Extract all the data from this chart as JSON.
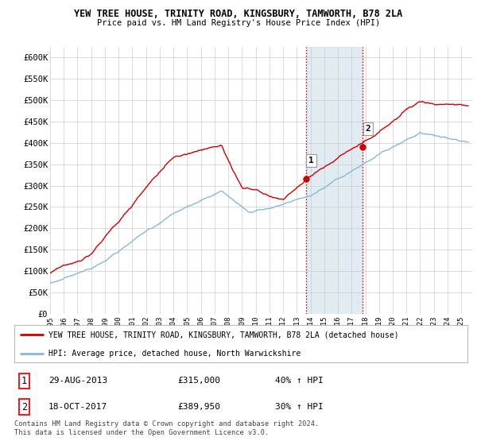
{
  "title1": "YEW TREE HOUSE, TRINITY ROAD, KINGSBURY, TAMWORTH, B78 2LA",
  "title2": "Price paid vs. HM Land Registry's House Price Index (HPI)",
  "ylabel_ticks": [
    "£0",
    "£50K",
    "£100K",
    "£150K",
    "£200K",
    "£250K",
    "£300K",
    "£350K",
    "£400K",
    "£450K",
    "£500K",
    "£550K",
    "£600K"
  ],
  "ytick_vals": [
    0,
    50000,
    100000,
    150000,
    200000,
    250000,
    300000,
    350000,
    400000,
    450000,
    500000,
    550000,
    600000
  ],
  "ylim": [
    0,
    625000
  ],
  "xlim_start": 1995.0,
  "xlim_end": 2025.8,
  "background_color": "#ffffff",
  "plot_bg_color": "#ffffff",
  "grid_color": "#cccccc",
  "red_line_color": "#cc0000",
  "blue_line_color": "#85b8d8",
  "sale1_x": 2013.66,
  "sale1_y": 315000,
  "sale2_x": 2017.8,
  "sale2_y": 389950,
  "vline_color": "#cc0000",
  "shade_color": "#c8dce8",
  "legend_red_label": "YEW TREE HOUSE, TRINITY ROAD, KINGSBURY, TAMWORTH, B78 2LA (detached house)",
  "legend_blue_label": "HPI: Average price, detached house, North Warwickshire",
  "ann1_date": "29-AUG-2013",
  "ann1_price": "£315,000",
  "ann1_hpi": "40% ↑ HPI",
  "ann2_date": "18-OCT-2017",
  "ann2_price": "£389,950",
  "ann2_hpi": "30% ↑ HPI",
  "footer": "Contains HM Land Registry data © Crown copyright and database right 2024.\nThis data is licensed under the Open Government Licence v3.0.",
  "xtick_years": [
    1995,
    1996,
    1997,
    1998,
    1999,
    2000,
    2001,
    2002,
    2003,
    2004,
    2005,
    2006,
    2007,
    2008,
    2009,
    2010,
    2011,
    2012,
    2013,
    2014,
    2015,
    2016,
    2017,
    2018,
    2019,
    2020,
    2021,
    2022,
    2023,
    2024,
    2025
  ]
}
